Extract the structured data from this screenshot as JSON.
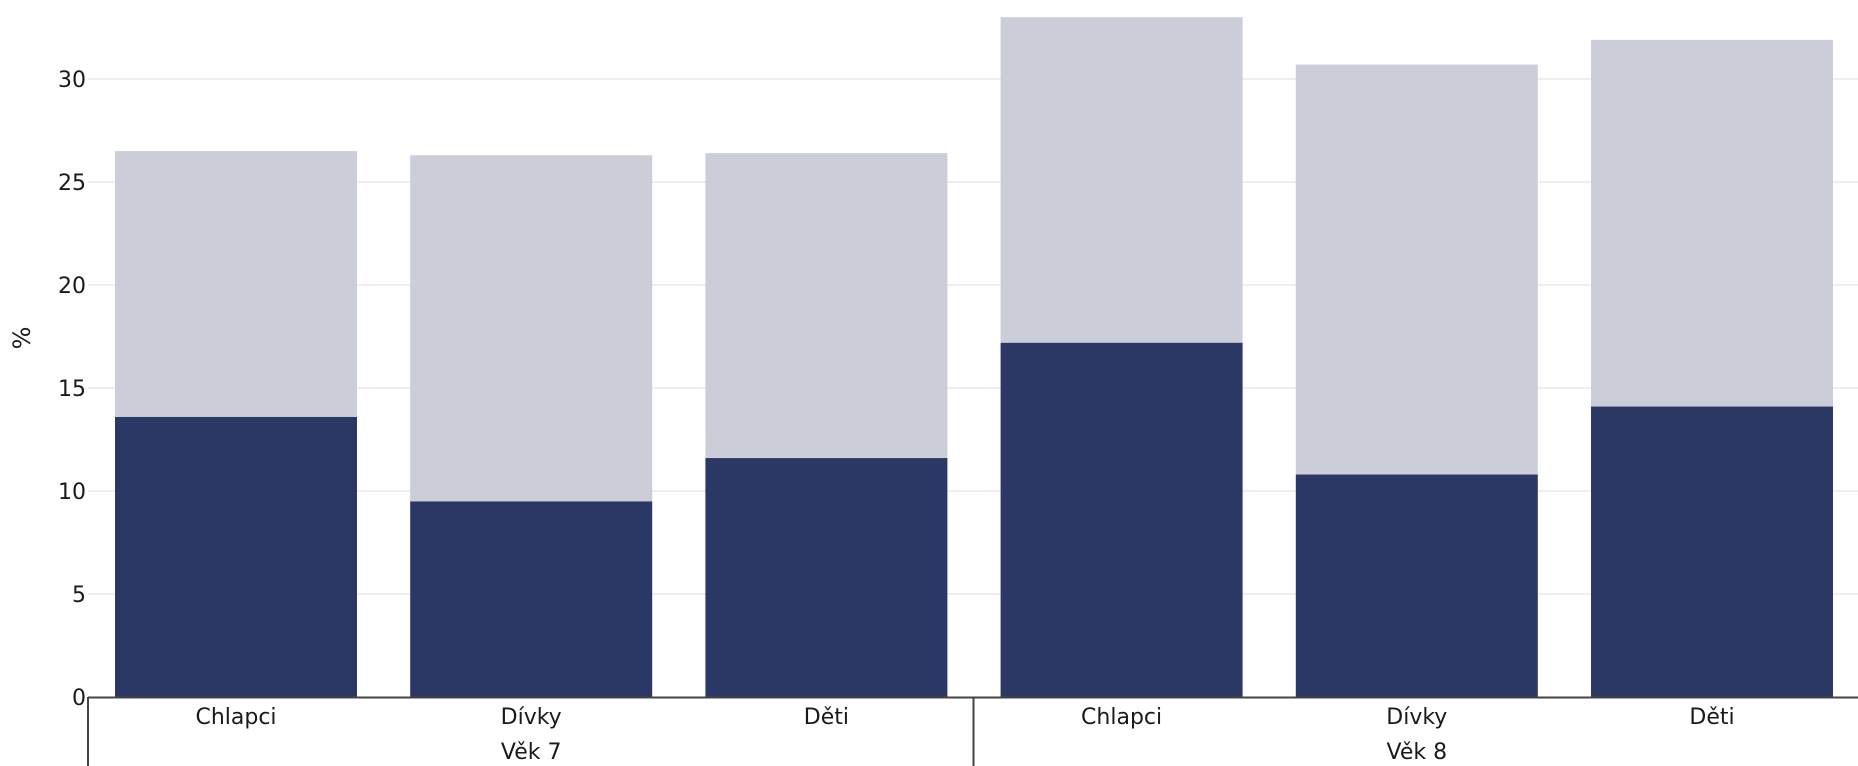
{
  "chart_data": {
    "type": "bar",
    "stacked": true,
    "xlabel": "",
    "ylabel": "%",
    "ylim": [
      0,
      33
    ],
    "yticks": [
      0,
      5,
      10,
      15,
      20,
      25,
      30
    ],
    "grid": true,
    "legend": "none",
    "groups": [
      {
        "label": "Věk 7",
        "categories": [
          "Chlapci",
          "Dívky",
          "Děti"
        ]
      },
      {
        "label": "Věk 8",
        "categories": [
          "Chlapci",
          "Dívky",
          "Děti"
        ]
      }
    ],
    "series": [
      {
        "color": "#2b3765",
        "values": [
          13.6,
          9.5,
          11.6,
          17.2,
          10.8,
          14.1
        ]
      },
      {
        "color": "#cbcdd9",
        "values": [
          12.9,
          16.8,
          14.8,
          15.8,
          19.9,
          17.8
        ]
      }
    ]
  }
}
